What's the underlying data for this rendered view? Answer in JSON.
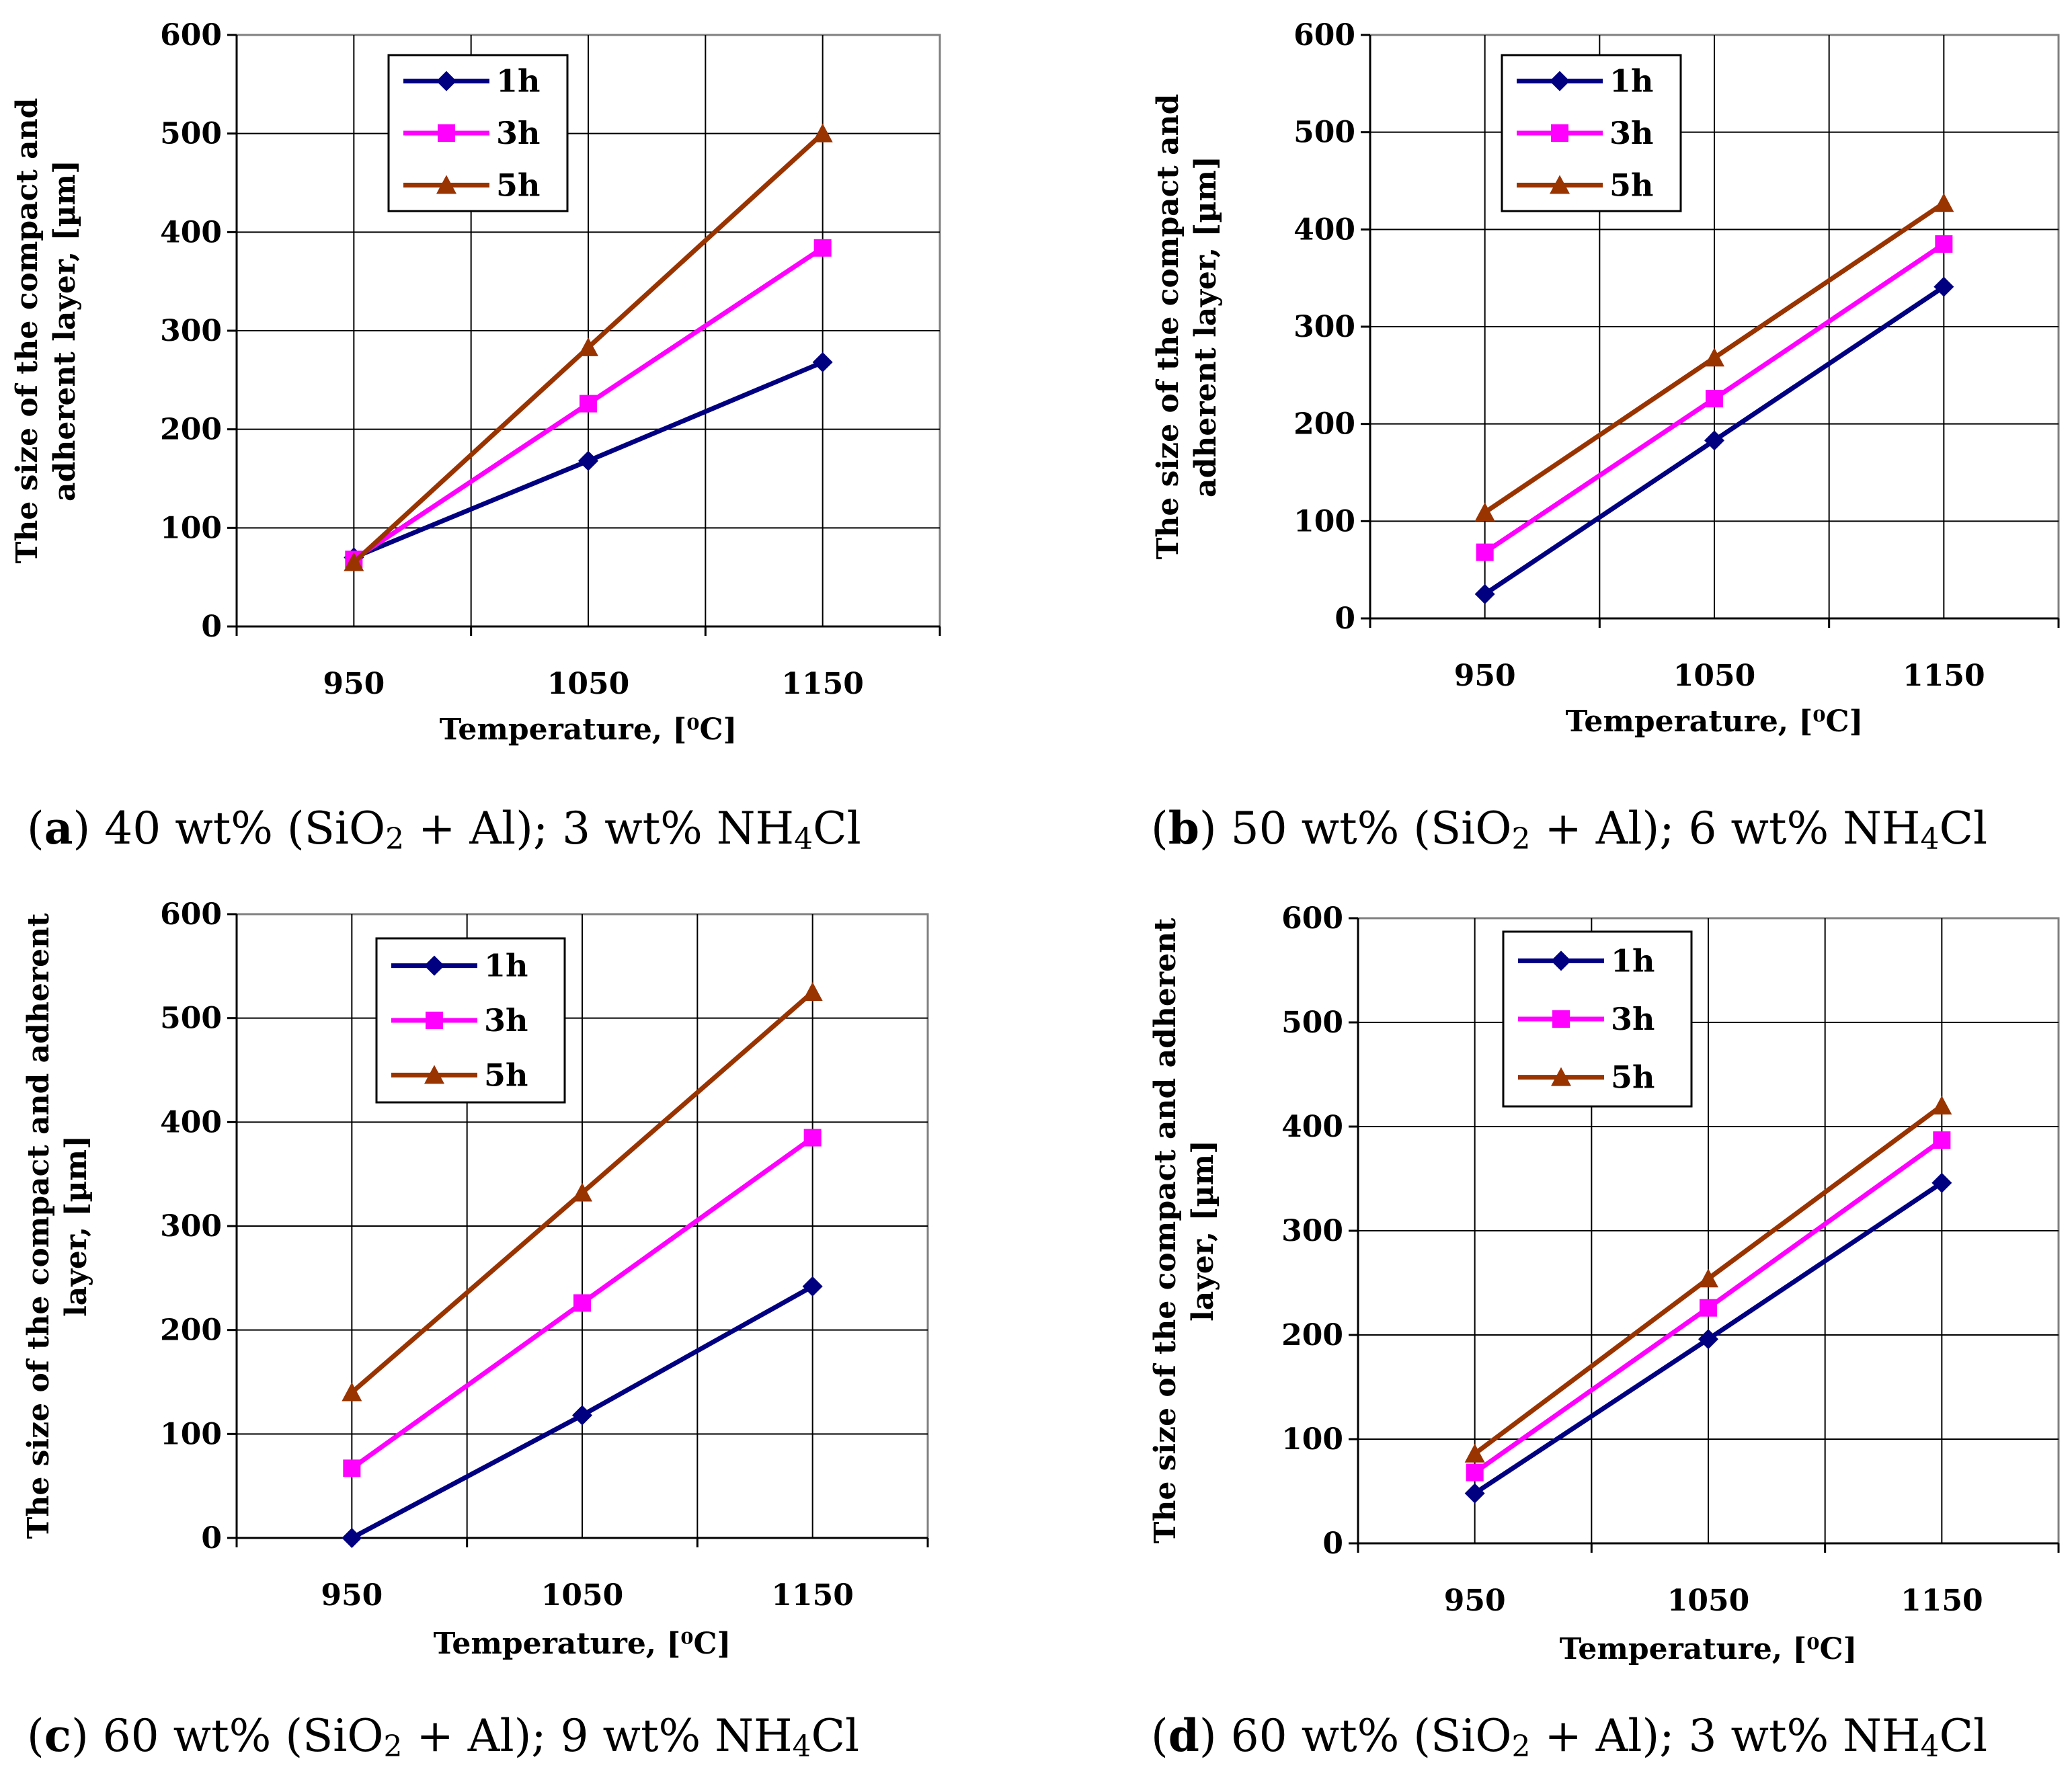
{
  "chart_data": [
    {
      "type": "line",
      "panel": "a",
      "x": [
        950,
        1050,
        1150
      ],
      "xticks": [
        "950",
        "1050",
        "1150"
      ],
      "xlim": [
        900,
        1200
      ],
      "ylim": [
        0,
        600
      ],
      "yticks": [
        "0",
        "100",
        "200",
        "300",
        "400",
        "500",
        "600"
      ],
      "xlabel": "Temperature, [⁰C]",
      "ylabel_lines": [
        "The size of the compact and",
        "adherent layer, [µm]"
      ],
      "legend_position": "top-left",
      "series": [
        {
          "name": "1h",
          "values": [
            70,
            168,
            268
          ],
          "color": "#000080",
          "marker": "diamond"
        },
        {
          "name": "3h",
          "values": [
            68,
            226,
            384
          ],
          "color": "#FF00FF",
          "marker": "square"
        },
        {
          "name": "5h",
          "values": [
            65,
            283,
            500
          ],
          "color": "#993300",
          "marker": "triangle"
        }
      ],
      "caption": {
        "letter": "a",
        "before": " 40 wt% (SiO",
        "sub1": "2",
        "mid": " + Al); 3 wt% NH",
        "sub2": "4",
        "after": "Cl"
      }
    },
    {
      "type": "line",
      "panel": "b",
      "x": [
        950,
        1050,
        1150
      ],
      "xticks": [
        "950",
        "1050",
        "1150"
      ],
      "xlim": [
        900,
        1200
      ],
      "ylim": [
        0,
        600
      ],
      "yticks": [
        "0",
        "100",
        "200",
        "300",
        "400",
        "500",
        "600"
      ],
      "xlabel": "Temperature, [⁰C]",
      "ylabel_lines": [
        "The size of the compact and",
        "adherent layer, [µm]"
      ],
      "legend_position": "top-left",
      "series": [
        {
          "name": "1h",
          "values": [
            25,
            183,
            341
          ],
          "color": "#000080",
          "marker": "diamond"
        },
        {
          "name": "3h",
          "values": [
            68,
            226,
            385
          ],
          "color": "#FF00FF",
          "marker": "square"
        },
        {
          "name": "5h",
          "values": [
            109,
            268,
            427
          ],
          "color": "#993300",
          "marker": "triangle"
        }
      ],
      "caption": {
        "letter": "b",
        "before": " 50 wt% (SiO",
        "sub1": "2",
        "mid": " + Al); 6 wt% NH",
        "sub2": "4",
        "after": "Cl"
      }
    },
    {
      "type": "line",
      "panel": "c",
      "x": [
        950,
        1050,
        1150
      ],
      "xticks": [
        "950",
        "1050",
        "1150"
      ],
      "xlim": [
        900,
        1200
      ],
      "ylim": [
        0,
        600
      ],
      "yticks": [
        "0",
        "100",
        "200",
        "300",
        "400",
        "500",
        "600"
      ],
      "xlabel": "Temperature, [⁰C]",
      "ylabel_lines": [
        "The size of the compact and adherent",
        "layer, [µm]"
      ],
      "legend_position": "top-left",
      "series": [
        {
          "name": "1h",
          "values": [
            0,
            118,
            242
          ],
          "color": "#000080",
          "marker": "diamond"
        },
        {
          "name": "3h",
          "values": [
            67,
            226,
            385
          ],
          "color": "#FF00FF",
          "marker": "square"
        },
        {
          "name": "5h",
          "values": [
            140,
            332,
            525
          ],
          "color": "#993300",
          "marker": "triangle"
        }
      ],
      "caption": {
        "letter": "c",
        "before": " 60 wt% (SiO",
        "sub1": "2",
        "mid": " + Al); 9 wt% NH",
        "sub2": "4",
        "after": "Cl"
      }
    },
    {
      "type": "line",
      "panel": "d",
      "x": [
        950,
        1050,
        1150
      ],
      "xticks": [
        "950",
        "1050",
        "1150"
      ],
      "xlim": [
        900,
        1200
      ],
      "ylim": [
        0,
        600
      ],
      "yticks": [
        "0",
        "100",
        "200",
        "300",
        "400",
        "500",
        "600"
      ],
      "xlabel": "Temperature, [⁰C]",
      "ylabel_lines": [
        "The size of the compact and adherent",
        "layer, [µm]"
      ],
      "legend_position": "top-left",
      "series": [
        {
          "name": "1h",
          "values": [
            48,
            196,
            346
          ],
          "color": "#000080",
          "marker": "diamond"
        },
        {
          "name": "3h",
          "values": [
            68,
            226,
            387
          ],
          "color": "#FF00FF",
          "marker": "square"
        },
        {
          "name": "5h",
          "values": [
            86,
            254,
            420
          ],
          "color": "#993300",
          "marker": "triangle"
        }
      ],
      "caption": {
        "letter": "d",
        "before": " 60 wt% (SiO",
        "sub1": "2",
        "mid": " + Al); 3 wt% NH",
        "sub2": "4",
        "after": "Cl"
      }
    }
  ]
}
